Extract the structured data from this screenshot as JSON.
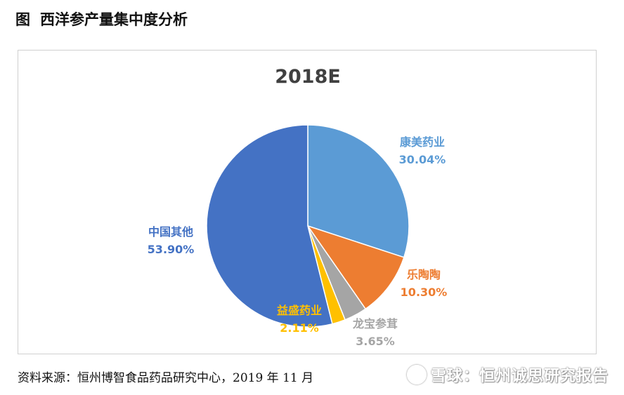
{
  "figure_title": {
    "prefix": "图",
    "text": "西洋参产量集中度分析"
  },
  "source_text": "资料来源：恒州博智食品药品研究中心，2019 年 11 月",
  "watermark": {
    "text": "雪球：恒州诚思研究报告",
    "icon": "snowball-logo-icon"
  },
  "colors": {
    "康美药业": "#5B9BD5",
    "乐陶陶": "#ED7D31",
    "龙宝参茸": "#A5A5A5",
    "益盛药业": "#FFC000",
    "中国其他": "#4472C4"
  },
  "chart_data": {
    "type": "pie",
    "title": "2018E",
    "start_angle_deg": 0,
    "direction": "clockwise",
    "slices": [
      {
        "name": "康美药业",
        "value": 30.04,
        "label": "30.04%",
        "color": "#5B9BD5"
      },
      {
        "name": "乐陶陶",
        "value": 10.3,
        "label": "10.30%",
        "color": "#ED7D31"
      },
      {
        "name": "龙宝参茸",
        "value": 3.65,
        "label": "3.65%",
        "color": "#A5A5A5"
      },
      {
        "name": "益盛药业",
        "value": 2.11,
        "label": "2.11%",
        "color": "#FFC000"
      },
      {
        "name": "中国其他",
        "value": 53.9,
        "label": "53.90%",
        "color": "#4472C4"
      }
    ],
    "label_colors": [
      "#5B9BD5",
      "#ED7D31",
      "#A5A5A5",
      "#FFC000",
      "#4472C4"
    ]
  }
}
